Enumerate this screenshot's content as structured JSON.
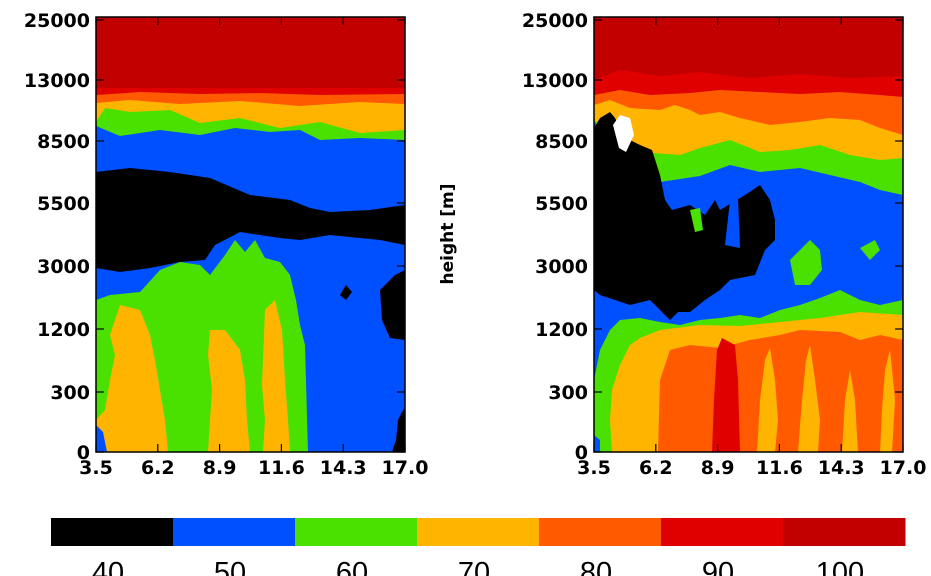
{
  "chart_data": [
    {
      "type": "heatmap",
      "panel": "left",
      "x_tick_labels": [
        "3.5",
        "6.2",
        "8.9",
        "11.6",
        "14.3",
        "17.0"
      ],
      "y_tick_labels": [
        "0",
        "300",
        "1200",
        "3000",
        "5500",
        "8500",
        "13000",
        "25000"
      ],
      "xlabel": "",
      "ylabel": "",
      "x_range": [
        3.5,
        17.0
      ],
      "y_range_label": [
        "0",
        "25000"
      ],
      "y_scale": "non-linear (index levels)",
      "levels": [
        40,
        50,
        60,
        70,
        80,
        90,
        100
      ],
      "regions_by_height": [
        {
          "height_band": "13000-25000",
          "level": 100
        },
        {
          "height_band": "~10500-13000",
          "level_range": [
            70,
            90
          ]
        },
        {
          "height_band": "~8500-10000",
          "level": 60
        },
        {
          "height_band": "~6000-8500",
          "level": 50
        },
        {
          "height_band": "~2500-6000",
          "level": 40,
          "x_extent": [
            3.5,
            10.5
          ]
        },
        {
          "height_band": "~2500-6000",
          "level": 50,
          "x_extent": [
            10.5,
            17.0
          ]
        },
        {
          "height_band": "~1500-2500",
          "level": 60,
          "x_extent": [
            3.5,
            8.0
          ]
        },
        {
          "height_band": "0-1500",
          "levels_alternating": [
            60,
            70
          ],
          "x_extent": [
            3.5,
            13.0
          ]
        },
        {
          "height_band": "0-2500",
          "level": 50,
          "x_extent": [
            13.0,
            17.0
          ]
        }
      ]
    },
    {
      "type": "heatmap",
      "panel": "right",
      "x_tick_labels": [
        "3.5",
        "6.2",
        "8.9",
        "11.6",
        "14.3",
        "17.0"
      ],
      "y_tick_labels": [
        "0",
        "300",
        "1200",
        "3000",
        "5500",
        "8500",
        "13000",
        "25000"
      ],
      "xlabel": "",
      "ylabel": "height [m]",
      "x_range": [
        3.5,
        17.0
      ],
      "y_range_label": [
        "0",
        "25000"
      ],
      "y_scale": "non-linear (index levels)",
      "levels": [
        40,
        50,
        60,
        70,
        80,
        90,
        100
      ],
      "regions_by_height": [
        {
          "height_band": "13000-25000",
          "level": 100
        },
        {
          "height_band": "~8500-13000",
          "level_range": [
            70,
            90
          ]
        },
        {
          "height_band": "~6000-8500",
          "level": 50
        },
        {
          "height_band": "~2000-8500",
          "level": 40,
          "x_extent": [
            3.5,
            8.5
          ]
        },
        {
          "height_band": "~1200-2000",
          "level": 60
        },
        {
          "height_band": "0-1200",
          "levels_alternating": [
            70,
            80,
            90
          ],
          "x_extent": [
            6.2,
            17.0
          ]
        },
        {
          "height_band": "0-1200",
          "level": 60,
          "x_extent": [
            3.5,
            6.2
          ]
        }
      ]
    }
  ],
  "colorbar": {
    "labels": [
      "40.",
      "50.",
      "60.",
      "70.",
      "80.",
      "90.",
      "100."
    ],
    "colors": [
      "#000000",
      "#0050ff",
      "#4ae000",
      "#ffb400",
      "#ff5a00",
      "#e00000",
      "#c20000"
    ]
  },
  "colors": {
    "l40": "#000000",
    "l50": "#0050ff",
    "l60": "#4ae000",
    "l70": "#ffb400",
    "l80": "#ff5a00",
    "l90": "#e00000",
    "l100": "#c20000",
    "hole": "#ffffff"
  }
}
